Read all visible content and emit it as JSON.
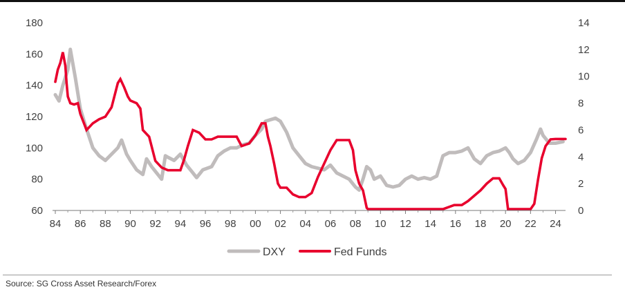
{
  "chart_data": {
    "type": "line",
    "x_ticks": [
      "84",
      "86",
      "88",
      "90",
      "92",
      "94",
      "96",
      "98",
      "00",
      "02",
      "04",
      "06",
      "08",
      "10",
      "12",
      "14",
      "16",
      "18",
      "20",
      "22",
      "24"
    ],
    "y_left": {
      "ticks": [
        "60",
        "80",
        "100",
        "120",
        "140",
        "160",
        "180"
      ],
      "range": [
        60,
        180
      ]
    },
    "y_right": {
      "ticks": [
        "0",
        "2",
        "4",
        "6",
        "8",
        "10",
        "12",
        "14"
      ],
      "range": [
        0,
        14
      ]
    },
    "x_range": [
      1984,
      2024.8
    ],
    "grid": false,
    "legend_position": "bottom-center",
    "series": [
      {
        "name": "DXY",
        "axis": "left",
        "color": "#c0bcbc",
        "x": [
          1984.0,
          1984.3,
          1984.6,
          1985.0,
          1985.2,
          1985.6,
          1986.0,
          1986.5,
          1987.0,
          1987.5,
          1988.0,
          1988.5,
          1989.0,
          1989.3,
          1989.7,
          1990.0,
          1990.5,
          1991.0,
          1991.3,
          1991.7,
          1992.0,
          1992.5,
          1992.8,
          1993.0,
          1993.5,
          1994.0,
          1994.5,
          1995.0,
          1995.3,
          1995.8,
          1996.5,
          1997.0,
          1997.5,
          1998.0,
          1998.5,
          1999.0,
          1999.5,
          2000.0,
          2000.5,
          2000.8,
          2001.2,
          2001.6,
          2002.0,
          2002.5,
          2003.0,
          2003.5,
          2004.0,
          2004.5,
          2005.0,
          2005.5,
          2006.0,
          2006.5,
          2007.0,
          2007.5,
          2008.0,
          2008.3,
          2008.6,
          2008.9,
          2009.2,
          2009.5,
          2010.0,
          2010.5,
          2011.0,
          2011.5,
          2012.0,
          2012.5,
          2013.0,
          2013.5,
          2014.0,
          2014.5,
          2015.0,
          2015.5,
          2016.0,
          2016.5,
          2017.0,
          2017.5,
          2018.0,
          2018.5,
          2019.0,
          2019.5,
          2020.0,
          2020.3,
          2020.6,
          2021.0,
          2021.5,
          2022.0,
          2022.5,
          2022.8,
          2023.0,
          2023.5,
          2024.0,
          2024.6
        ],
        "values": [
          134,
          130,
          140,
          150,
          163,
          145,
          125,
          112,
          100,
          95,
          92,
          96,
          100,
          105,
          96,
          92,
          86,
          83,
          93,
          88,
          85,
          80,
          95,
          94,
          92,
          96,
          89,
          84,
          81,
          86,
          88,
          95,
          98,
          100,
          100,
          102,
          103,
          108,
          112,
          117,
          118,
          119,
          117,
          110,
          100,
          95,
          90,
          88,
          87,
          86,
          89,
          84,
          82,
          80,
          75,
          73,
          80,
          88,
          86,
          80,
          82,
          76,
          75,
          76,
          80,
          82,
          80,
          81,
          80,
          82,
          95,
          97,
          97,
          98,
          100,
          93,
          90,
          95,
          97,
          98,
          100,
          97,
          93,
          90,
          92,
          97,
          106,
          112,
          108,
          103,
          103,
          104
        ]
      },
      {
        "name": "Fed Funds",
        "axis": "right",
        "color": "#e8002d",
        "x": [
          1984.0,
          1984.2,
          1984.4,
          1984.6,
          1984.8,
          1984.9,
          1985.0,
          1985.2,
          1985.5,
          1985.8,
          1986.0,
          1986.5,
          1987.0,
          1987.5,
          1988.0,
          1988.5,
          1989.0,
          1989.2,
          1989.5,
          1989.8,
          1990.0,
          1990.5,
          1990.8,
          1991.0,
          1991.5,
          1992.0,
          1992.5,
          1993.0,
          1993.5,
          1994.0,
          1994.3,
          1994.6,
          1995.0,
          1995.5,
          1996.0,
          1996.5,
          1997.0,
          1997.5,
          1998.0,
          1998.5,
          1998.9,
          1999.5,
          2000.0,
          2000.5,
          2000.8,
          2001.0,
          2001.2,
          2001.5,
          2001.8,
          2002.0,
          2002.5,
          2003.0,
          2003.5,
          2004.0,
          2004.5,
          2005.0,
          2005.5,
          2006.0,
          2006.5,
          2007.0,
          2007.5,
          2007.8,
          2008.0,
          2008.3,
          2008.6,
          2008.9,
          2009.0,
          2012.0,
          2015.0,
          2015.9,
          2016.5,
          2017.0,
          2017.5,
          2018.0,
          2018.5,
          2019.0,
          2019.5,
          2019.8,
          2020.0,
          2020.2,
          2021.0,
          2022.0,
          2022.3,
          2022.6,
          2022.9,
          2023.2,
          2023.6,
          2024.0,
          2024.8
        ],
        "values": [
          9.6,
          10.5,
          11.0,
          11.8,
          10.8,
          9.5,
          8.5,
          8.0,
          7.9,
          8.0,
          7.2,
          6.0,
          6.5,
          6.8,
          7.0,
          7.7,
          9.5,
          9.8,
          9.2,
          8.5,
          8.2,
          8.0,
          7.6,
          6.0,
          5.5,
          3.7,
          3.2,
          3.0,
          3.0,
          3.0,
          3.8,
          4.8,
          6.0,
          5.8,
          5.3,
          5.3,
          5.5,
          5.5,
          5.5,
          5.5,
          4.8,
          5.0,
          5.6,
          6.5,
          6.5,
          5.5,
          4.8,
          3.5,
          2.0,
          1.7,
          1.7,
          1.2,
          1.0,
          1.0,
          1.3,
          2.5,
          3.5,
          4.5,
          5.25,
          5.25,
          5.25,
          4.5,
          3.0,
          2.0,
          1.5,
          0.2,
          0.1,
          0.1,
          0.1,
          0.4,
          0.4,
          0.7,
          1.1,
          1.5,
          2.0,
          2.4,
          2.4,
          1.9,
          1.6,
          0.1,
          0.1,
          0.1,
          0.5,
          2.3,
          3.9,
          4.8,
          5.3,
          5.33,
          5.33
        ]
      }
    ],
    "source": "Source: SG Cross Asset Research/Forex"
  }
}
